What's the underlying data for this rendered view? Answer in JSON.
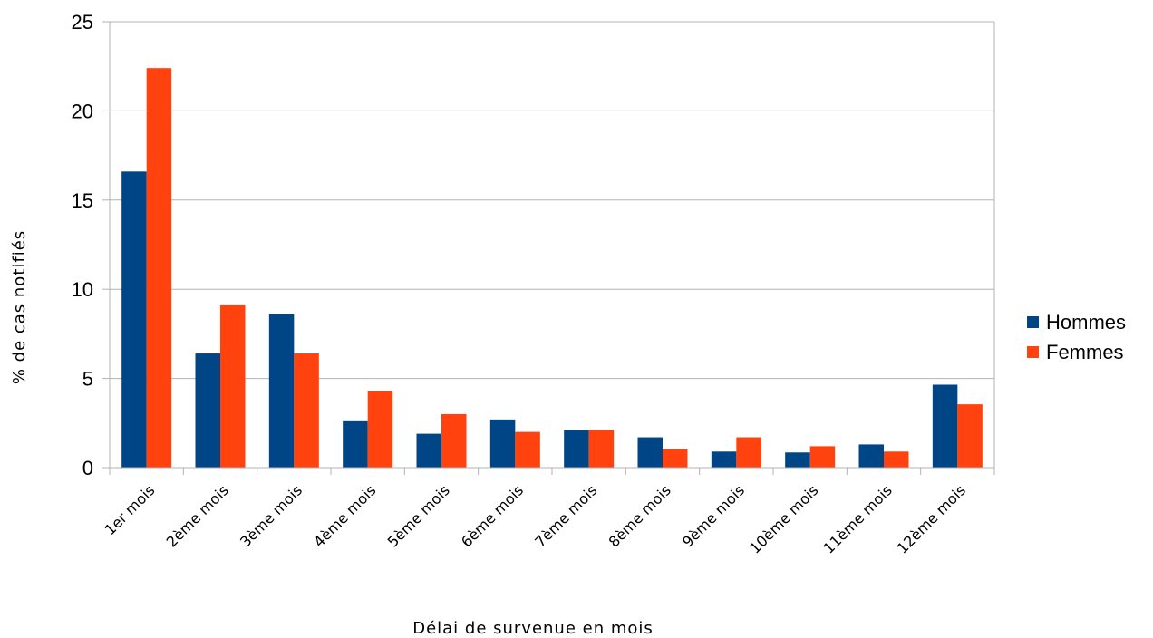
{
  "chart_data": {
    "type": "bar",
    "categories": [
      "1er mois",
      "2ème mois",
      "3ème mois",
      "4ème mois",
      "5ème mois",
      "6ème mois",
      "7ème mois",
      "8ème mois",
      "9ème mois",
      "10ème mois",
      "11ème mois",
      "12ème mois"
    ],
    "series": [
      {
        "name": "Hommes",
        "color": "#004586",
        "values": [
          16.6,
          6.4,
          8.6,
          2.6,
          1.9,
          2.7,
          2.1,
          1.7,
          0.9,
          0.85,
          1.3,
          4.65
        ]
      },
      {
        "name": "Femmes",
        "color": "#ff420e",
        "values": [
          22.4,
          9.1,
          6.4,
          4.3,
          3.0,
          2.0,
          2.1,
          1.05,
          1.7,
          1.2,
          0.9,
          3.55
        ]
      }
    ],
    "xlabel": "Délai de survenue en mois",
    "ylabel": "% de cas notifiés",
    "ylim": [
      0,
      25
    ],
    "yticks": [
      0,
      5,
      10,
      15,
      20,
      25
    ],
    "grid": true,
    "legend_position": "right"
  }
}
